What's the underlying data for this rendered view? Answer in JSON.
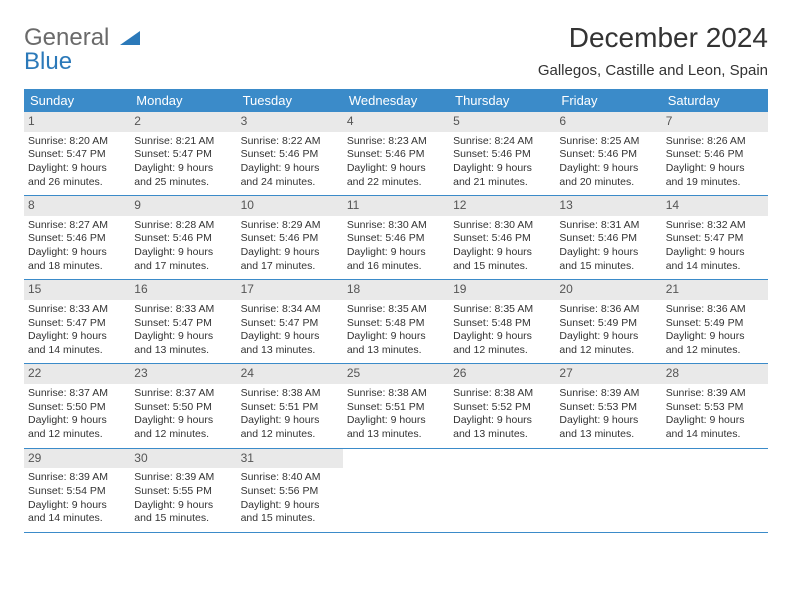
{
  "brand": {
    "word1": "General",
    "word2": "Blue"
  },
  "title": "December 2024",
  "location": "Gallegos, Castille and Leon, Spain",
  "colors": {
    "header_bg": "#3b8bc9",
    "header_fg": "#ffffff",
    "daynum_bg": "#e9e9e9",
    "rule": "#3b8bc9",
    "logo_gray": "#6a6a6a",
    "logo_blue": "#2b79b9",
    "body_bg": "#ffffff",
    "text": "#333333"
  },
  "typography": {
    "title_fontsize": 28,
    "location_fontsize": 15,
    "th_fontsize": 13,
    "cell_fontsize": 10.5,
    "daynum_fontsize": 12,
    "logo_fontsize": 24
  },
  "weekday_labels": [
    "Sunday",
    "Monday",
    "Tuesday",
    "Wednesday",
    "Thursday",
    "Friday",
    "Saturday"
  ],
  "weeks": [
    [
      {
        "day": "1",
        "sunrise": "Sunrise: 8:20 AM",
        "sunset": "Sunset: 5:47 PM",
        "daylight": "Daylight: 9 hours and 26 minutes."
      },
      {
        "day": "2",
        "sunrise": "Sunrise: 8:21 AM",
        "sunset": "Sunset: 5:47 PM",
        "daylight": "Daylight: 9 hours and 25 minutes."
      },
      {
        "day": "3",
        "sunrise": "Sunrise: 8:22 AM",
        "sunset": "Sunset: 5:46 PM",
        "daylight": "Daylight: 9 hours and 24 minutes."
      },
      {
        "day": "4",
        "sunrise": "Sunrise: 8:23 AM",
        "sunset": "Sunset: 5:46 PM",
        "daylight": "Daylight: 9 hours and 22 minutes."
      },
      {
        "day": "5",
        "sunrise": "Sunrise: 8:24 AM",
        "sunset": "Sunset: 5:46 PM",
        "daylight": "Daylight: 9 hours and 21 minutes."
      },
      {
        "day": "6",
        "sunrise": "Sunrise: 8:25 AM",
        "sunset": "Sunset: 5:46 PM",
        "daylight": "Daylight: 9 hours and 20 minutes."
      },
      {
        "day": "7",
        "sunrise": "Sunrise: 8:26 AM",
        "sunset": "Sunset: 5:46 PM",
        "daylight": "Daylight: 9 hours and 19 minutes."
      }
    ],
    [
      {
        "day": "8",
        "sunrise": "Sunrise: 8:27 AM",
        "sunset": "Sunset: 5:46 PM",
        "daylight": "Daylight: 9 hours and 18 minutes."
      },
      {
        "day": "9",
        "sunrise": "Sunrise: 8:28 AM",
        "sunset": "Sunset: 5:46 PM",
        "daylight": "Daylight: 9 hours and 17 minutes."
      },
      {
        "day": "10",
        "sunrise": "Sunrise: 8:29 AM",
        "sunset": "Sunset: 5:46 PM",
        "daylight": "Daylight: 9 hours and 17 minutes."
      },
      {
        "day": "11",
        "sunrise": "Sunrise: 8:30 AM",
        "sunset": "Sunset: 5:46 PM",
        "daylight": "Daylight: 9 hours and 16 minutes."
      },
      {
        "day": "12",
        "sunrise": "Sunrise: 8:30 AM",
        "sunset": "Sunset: 5:46 PM",
        "daylight": "Daylight: 9 hours and 15 minutes."
      },
      {
        "day": "13",
        "sunrise": "Sunrise: 8:31 AM",
        "sunset": "Sunset: 5:46 PM",
        "daylight": "Daylight: 9 hours and 15 minutes."
      },
      {
        "day": "14",
        "sunrise": "Sunrise: 8:32 AM",
        "sunset": "Sunset: 5:47 PM",
        "daylight": "Daylight: 9 hours and 14 minutes."
      }
    ],
    [
      {
        "day": "15",
        "sunrise": "Sunrise: 8:33 AM",
        "sunset": "Sunset: 5:47 PM",
        "daylight": "Daylight: 9 hours and 14 minutes."
      },
      {
        "day": "16",
        "sunrise": "Sunrise: 8:33 AM",
        "sunset": "Sunset: 5:47 PM",
        "daylight": "Daylight: 9 hours and 13 minutes."
      },
      {
        "day": "17",
        "sunrise": "Sunrise: 8:34 AM",
        "sunset": "Sunset: 5:47 PM",
        "daylight": "Daylight: 9 hours and 13 minutes."
      },
      {
        "day": "18",
        "sunrise": "Sunrise: 8:35 AM",
        "sunset": "Sunset: 5:48 PM",
        "daylight": "Daylight: 9 hours and 13 minutes."
      },
      {
        "day": "19",
        "sunrise": "Sunrise: 8:35 AM",
        "sunset": "Sunset: 5:48 PM",
        "daylight": "Daylight: 9 hours and 12 minutes."
      },
      {
        "day": "20",
        "sunrise": "Sunrise: 8:36 AM",
        "sunset": "Sunset: 5:49 PM",
        "daylight": "Daylight: 9 hours and 12 minutes."
      },
      {
        "day": "21",
        "sunrise": "Sunrise: 8:36 AM",
        "sunset": "Sunset: 5:49 PM",
        "daylight": "Daylight: 9 hours and 12 minutes."
      }
    ],
    [
      {
        "day": "22",
        "sunrise": "Sunrise: 8:37 AM",
        "sunset": "Sunset: 5:50 PM",
        "daylight": "Daylight: 9 hours and 12 minutes."
      },
      {
        "day": "23",
        "sunrise": "Sunrise: 8:37 AM",
        "sunset": "Sunset: 5:50 PM",
        "daylight": "Daylight: 9 hours and 12 minutes."
      },
      {
        "day": "24",
        "sunrise": "Sunrise: 8:38 AM",
        "sunset": "Sunset: 5:51 PM",
        "daylight": "Daylight: 9 hours and 12 minutes."
      },
      {
        "day": "25",
        "sunrise": "Sunrise: 8:38 AM",
        "sunset": "Sunset: 5:51 PM",
        "daylight": "Daylight: 9 hours and 13 minutes."
      },
      {
        "day": "26",
        "sunrise": "Sunrise: 8:38 AM",
        "sunset": "Sunset: 5:52 PM",
        "daylight": "Daylight: 9 hours and 13 minutes."
      },
      {
        "day": "27",
        "sunrise": "Sunrise: 8:39 AM",
        "sunset": "Sunset: 5:53 PM",
        "daylight": "Daylight: 9 hours and 13 minutes."
      },
      {
        "day": "28",
        "sunrise": "Sunrise: 8:39 AM",
        "sunset": "Sunset: 5:53 PM",
        "daylight": "Daylight: 9 hours and 14 minutes."
      }
    ],
    [
      {
        "day": "29",
        "sunrise": "Sunrise: 8:39 AM",
        "sunset": "Sunset: 5:54 PM",
        "daylight": "Daylight: 9 hours and 14 minutes."
      },
      {
        "day": "30",
        "sunrise": "Sunrise: 8:39 AM",
        "sunset": "Sunset: 5:55 PM",
        "daylight": "Daylight: 9 hours and 15 minutes."
      },
      {
        "day": "31",
        "sunrise": "Sunrise: 8:40 AM",
        "sunset": "Sunset: 5:56 PM",
        "daylight": "Daylight: 9 hours and 15 minutes."
      },
      {
        "day": "",
        "sunrise": "",
        "sunset": "",
        "daylight": ""
      },
      {
        "day": "",
        "sunrise": "",
        "sunset": "",
        "daylight": ""
      },
      {
        "day": "",
        "sunrise": "",
        "sunset": "",
        "daylight": ""
      },
      {
        "day": "",
        "sunrise": "",
        "sunset": "",
        "daylight": ""
      }
    ]
  ]
}
